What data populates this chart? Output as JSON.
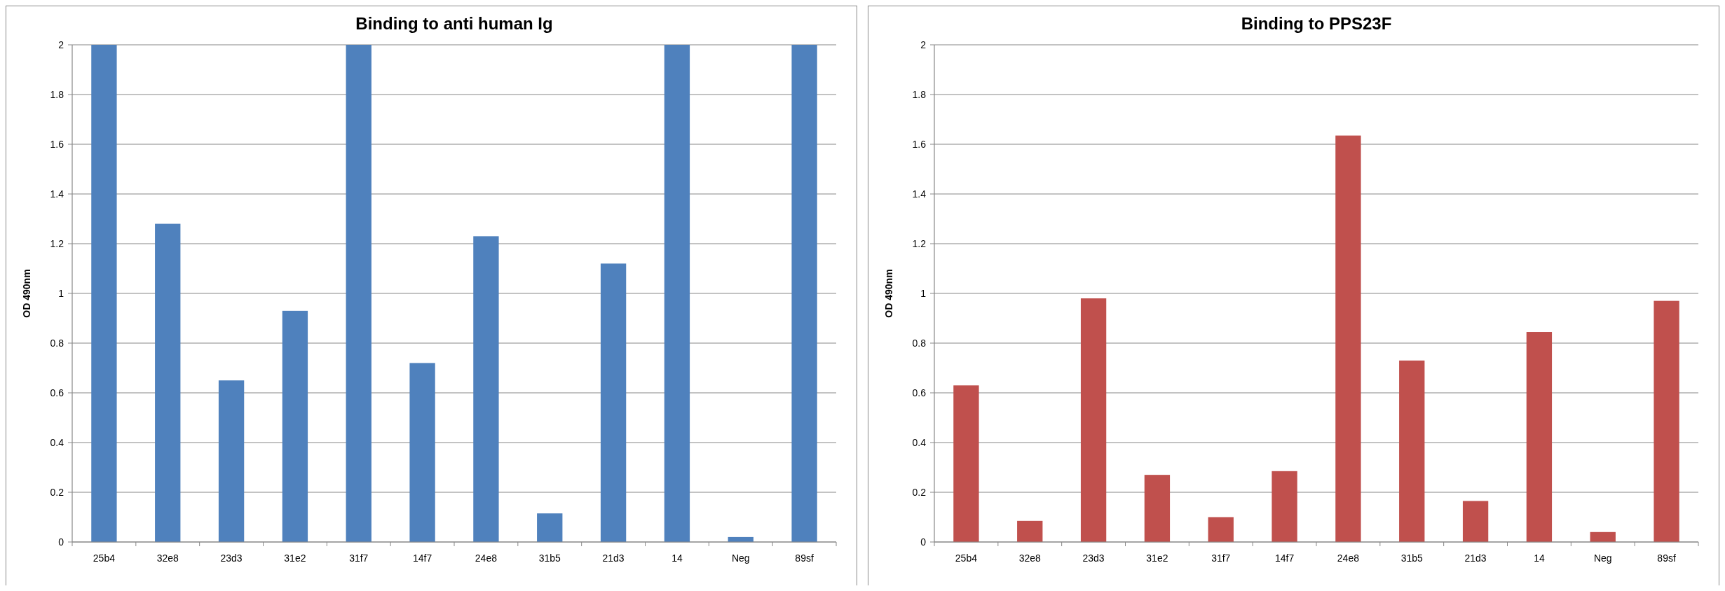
{
  "chart_data": [
    {
      "type": "bar",
      "title": "Binding to anti human Ig",
      "ylabel": "OD 490nm",
      "categories": [
        "25b4",
        "32e8",
        "23d3",
        "31e2",
        "31f7",
        "14f7",
        "24e8",
        "31b5",
        "21d3",
        "14",
        "Neg",
        "89sf"
      ],
      "series": [
        {
          "color": "#4f81bd",
          "values": [
            2,
            1.28,
            0.65,
            0.93,
            2,
            0.72,
            1.23,
            0.115,
            1.12,
            2,
            0.02,
            2
          ]
        }
      ],
      "ylim": [
        0,
        2
      ],
      "yticks": [
        0,
        0.2,
        0.4,
        0.6,
        0.8,
        1,
        1.2,
        1.4,
        1.6,
        1.8,
        2
      ],
      "grid": "y"
    },
    {
      "type": "bar",
      "title": "Binding to PPS23F",
      "ylabel": "OD 490nm",
      "categories": [
        "25b4",
        "32e8",
        "23d3",
        "31e2",
        "31f7",
        "14f7",
        "24e8",
        "31b5",
        "21d3",
        "14",
        "Neg",
        "89sf"
      ],
      "series": [
        {
          "color": "#c0504d",
          "values": [
            0.63,
            0.085,
            0.98,
            0.27,
            0.1,
            0.285,
            1.635,
            0.73,
            0.165,
            0.845,
            0.04,
            0.97
          ]
        }
      ],
      "ylim": [
        0,
        2
      ],
      "yticks": [
        0,
        0.2,
        0.4,
        0.6,
        0.8,
        1,
        1.2,
        1.4,
        1.6,
        1.8,
        2
      ],
      "grid": "y"
    }
  ]
}
